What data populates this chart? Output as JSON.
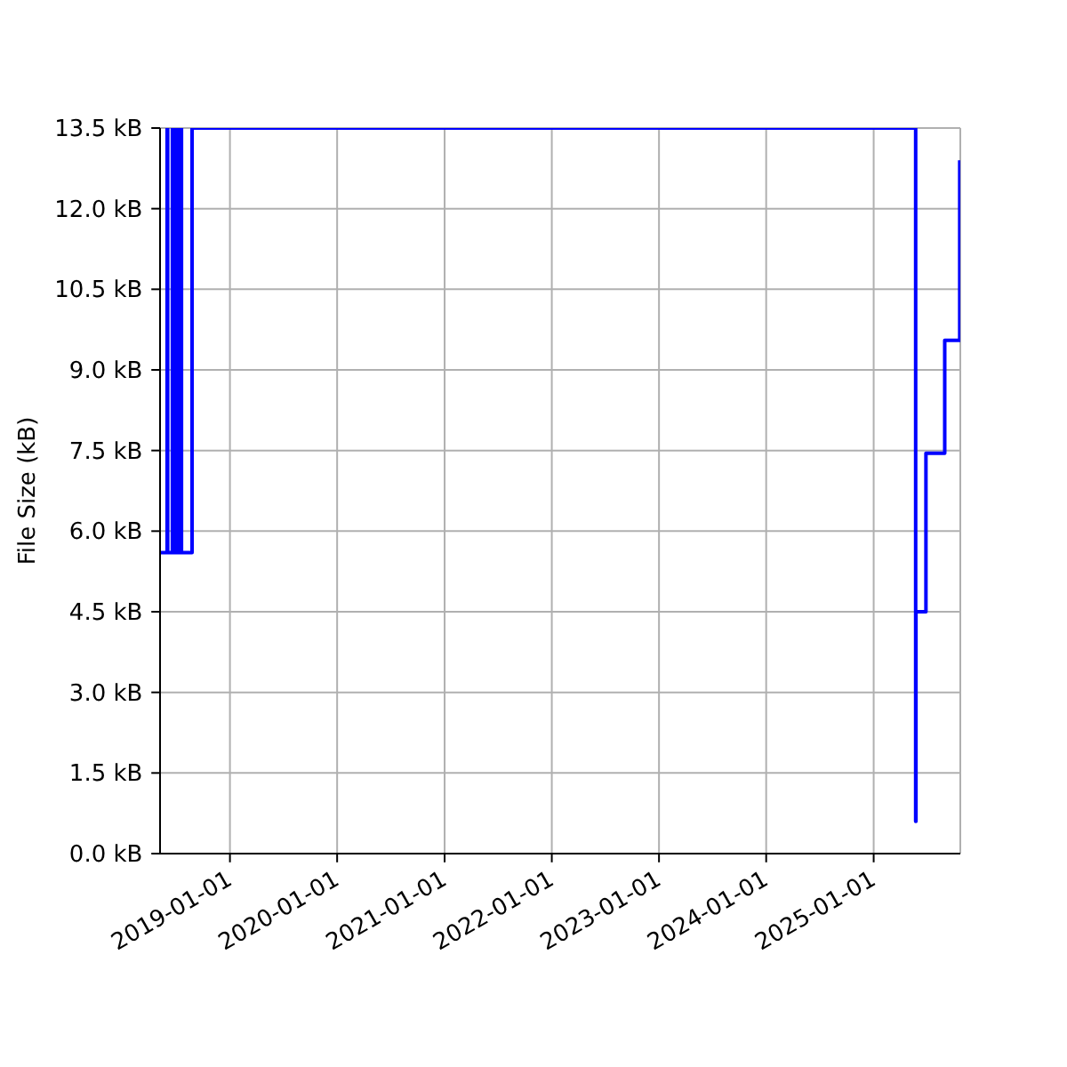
{
  "chart_data": {
    "type": "step",
    "ylabel": "File Size (kB)",
    "x": [
      "2018-05-08",
      "2018-06-01",
      "2018-06-03",
      "2018-06-19",
      "2018-06-22",
      "2018-06-25",
      "2018-06-28",
      "2018-07-01",
      "2018-07-04",
      "2018-07-07",
      "2018-07-10",
      "2018-07-13",
      "2018-07-16",
      "2018-07-18",
      "2018-07-20",
      "2018-08-25",
      "2025-05-24",
      "2025-05-25",
      "2025-06-28",
      "2025-08-31",
      "2025-10-21"
    ],
    "values": [
      5.6,
      13.5,
      5.6,
      13.5,
      5.6,
      13.5,
      5.6,
      13.5,
      5.6,
      13.5,
      5.6,
      13.5,
      5.6,
      13.5,
      5.6,
      13.5,
      0.6,
      4.5,
      7.45,
      9.55,
      12.9
    ],
    "color": "#0000ff",
    "xlim": [
      "2018-05-08",
      "2025-10-23"
    ],
    "ylim": [
      0,
      13.5
    ],
    "xticks": [
      "2019-01-01",
      "2020-01-01",
      "2021-01-01",
      "2022-01-01",
      "2023-01-01",
      "2024-01-01",
      "2025-01-01"
    ],
    "yticks": [
      {
        "value": 0,
        "label": "0.0 kB"
      },
      {
        "value": 1.5,
        "label": "1.5 kB"
      },
      {
        "value": 3,
        "label": "3.0 kB"
      },
      {
        "value": 4.5,
        "label": "4.5 kB"
      },
      {
        "value": 6,
        "label": "6.0 kB"
      },
      {
        "value": 7.5,
        "label": "7.5 kB"
      },
      {
        "value": 9,
        "label": "9.0 kB"
      },
      {
        "value": 10.5,
        "label": "10.5 kB"
      },
      {
        "value": 12,
        "label": "12.0 kB"
      },
      {
        "value": 13.5,
        "label": "13.5 kB"
      }
    ],
    "grid": true
  }
}
